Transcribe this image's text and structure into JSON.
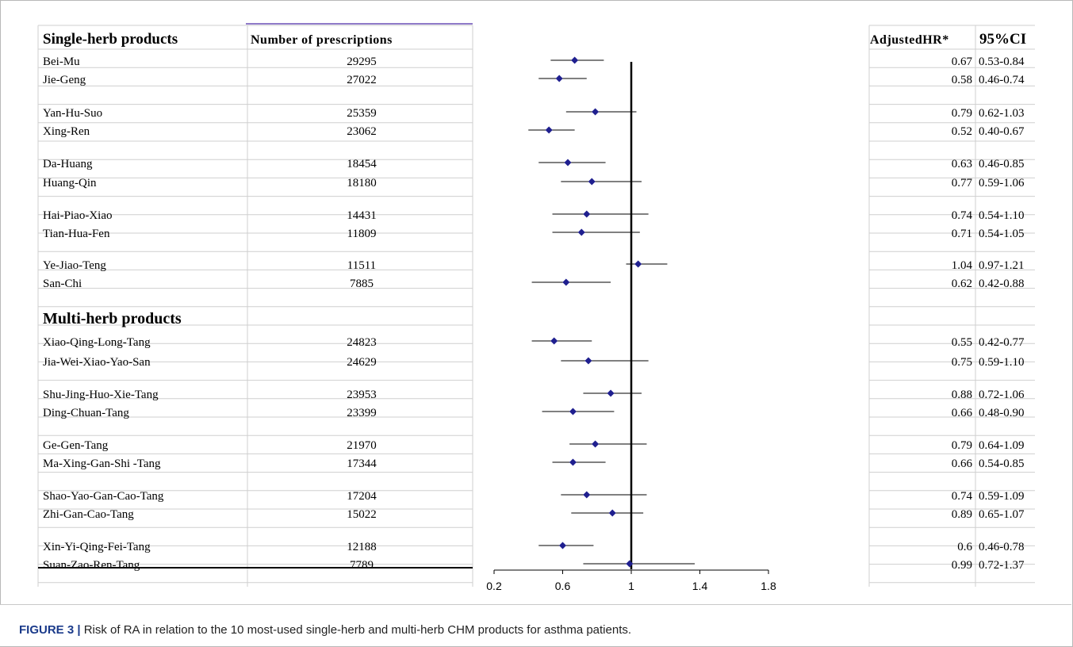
{
  "table": {
    "col_product": "Single-herb products",
    "col_count": "Number of prescriptions",
    "col_hr": "AdjustedHR*",
    "col_ci": "95%CI",
    "multi_section": "Multi-herb products"
  },
  "caption": {
    "label": "FIGURE 3 |",
    "text": " Risk of RA in relation to the 10 most-used single-herb and multi-herb CHM products for asthma patients."
  },
  "chart_data": {
    "type": "forest",
    "x_ticks": [
      "0.2",
      "0.6",
      "1",
      "1.4",
      "1.8"
    ],
    "xlim": [
      0.2,
      1.8
    ],
    "reference_line": 1,
    "rows": [
      {
        "name": "Bei-Mu",
        "count": "29295",
        "hr": 0.67,
        "lo": 0.53,
        "hi": 0.84,
        "hr_text": "0.67",
        "ci_text": "0.53-0.84"
      },
      {
        "name": "Jie-Geng",
        "count": "27022",
        "hr": 0.58,
        "lo": 0.46,
        "hi": 0.74,
        "hr_text": "0.58",
        "ci_text": "0.46-0.74"
      },
      {
        "name": "Yan-Hu-Suo",
        "count": "25359",
        "hr": 0.79,
        "lo": 0.62,
        "hi": 1.03,
        "hr_text": "0.79",
        "ci_text": "0.62-1.03"
      },
      {
        "name": "Xing-Ren",
        "count": "23062",
        "hr": 0.52,
        "lo": 0.4,
        "hi": 0.67,
        "hr_text": "0.52",
        "ci_text": "0.40-0.67"
      },
      {
        "name": "Da-Huang",
        "count": "18454",
        "hr": 0.63,
        "lo": 0.46,
        "hi": 0.85,
        "hr_text": "0.63",
        "ci_text": "0.46-0.85"
      },
      {
        "name": "Huang-Qin",
        "count": "18180",
        "hr": 0.77,
        "lo": 0.59,
        "hi": 1.06,
        "hr_text": "0.77",
        "ci_text": "0.59-1.06"
      },
      {
        "name": "Hai-Piao-Xiao",
        "count": "14431",
        "hr": 0.74,
        "lo": 0.54,
        "hi": 1.1,
        "hr_text": "0.74",
        "ci_text": "0.54-1.10"
      },
      {
        "name": "Tian-Hua-Fen",
        "count": "11809",
        "hr": 0.71,
        "lo": 0.54,
        "hi": 1.05,
        "hr_text": "0.71",
        "ci_text": "0.54-1.05"
      },
      {
        "name": "Ye-Jiao-Teng",
        "count": "11511",
        "hr": 1.04,
        "lo": 0.97,
        "hi": 1.21,
        "hr_text": "1.04",
        "ci_text": "0.97-1.21"
      },
      {
        "name": "San-Chi",
        "count": "7885",
        "hr": 0.62,
        "lo": 0.42,
        "hi": 0.88,
        "hr_text": "0.62",
        "ci_text": "0.42-0.88"
      },
      {
        "name": "Xiao-Qing-Long-Tang",
        "count": "24823",
        "hr": 0.55,
        "lo": 0.42,
        "hi": 0.77,
        "hr_text": "0.55",
        "ci_text": "0.42-0.77"
      },
      {
        "name": "Jia-Wei-Xiao-Yao-San",
        "count": "24629",
        "hr": 0.75,
        "lo": 0.59,
        "hi": 1.1,
        "hr_text": "0.75",
        "ci_text": "0.59-1.10"
      },
      {
        "name": "Shu-Jing-Huo-Xie-Tang",
        "count": "23953",
        "hr": 0.88,
        "lo": 0.72,
        "hi": 1.06,
        "hr_text": "0.88",
        "ci_text": "0.72-1.06"
      },
      {
        "name": "Ding-Chuan-Tang",
        "count": "23399",
        "hr": 0.66,
        "lo": 0.48,
        "hi": 0.9,
        "hr_text": "0.66",
        "ci_text": "0.48-0.90"
      },
      {
        "name": "Ge-Gen-Tang",
        "count": "21970",
        "hr": 0.79,
        "lo": 0.64,
        "hi": 1.09,
        "hr_text": "0.79",
        "ci_text": "0.64-1.09"
      },
      {
        "name": "Ma-Xing-Gan-Shi -Tang",
        "count": "17344",
        "hr": 0.66,
        "lo": 0.54,
        "hi": 0.85,
        "hr_text": "0.66",
        "ci_text": "0.54-0.85"
      },
      {
        "name": "Shao-Yao-Gan-Cao-Tang",
        "count": "17204",
        "hr": 0.74,
        "lo": 0.59,
        "hi": 1.09,
        "hr_text": "0.74",
        "ci_text": "0.59-1.09"
      },
      {
        "name": "Zhi-Gan-Cao-Tang",
        "count": "15022",
        "hr": 0.89,
        "lo": 0.65,
        "hi": 1.07,
        "hr_text": "0.89",
        "ci_text": "0.65-1.07"
      },
      {
        "name": "Xin-Yi-Qing-Fei-Tang",
        "count": "12188",
        "hr": 0.6,
        "lo": 0.46,
        "hi": 0.78,
        "hr_text": "0.6",
        "ci_text": "0.46-0.78"
      },
      {
        "name": "Suan-Zao-Ren-Tang",
        "count": "7789",
        "hr": 0.99,
        "lo": 0.72,
        "hi": 1.37,
        "hr_text": "0.99",
        "ci_text": "0.72-1.37"
      }
    ]
  }
}
